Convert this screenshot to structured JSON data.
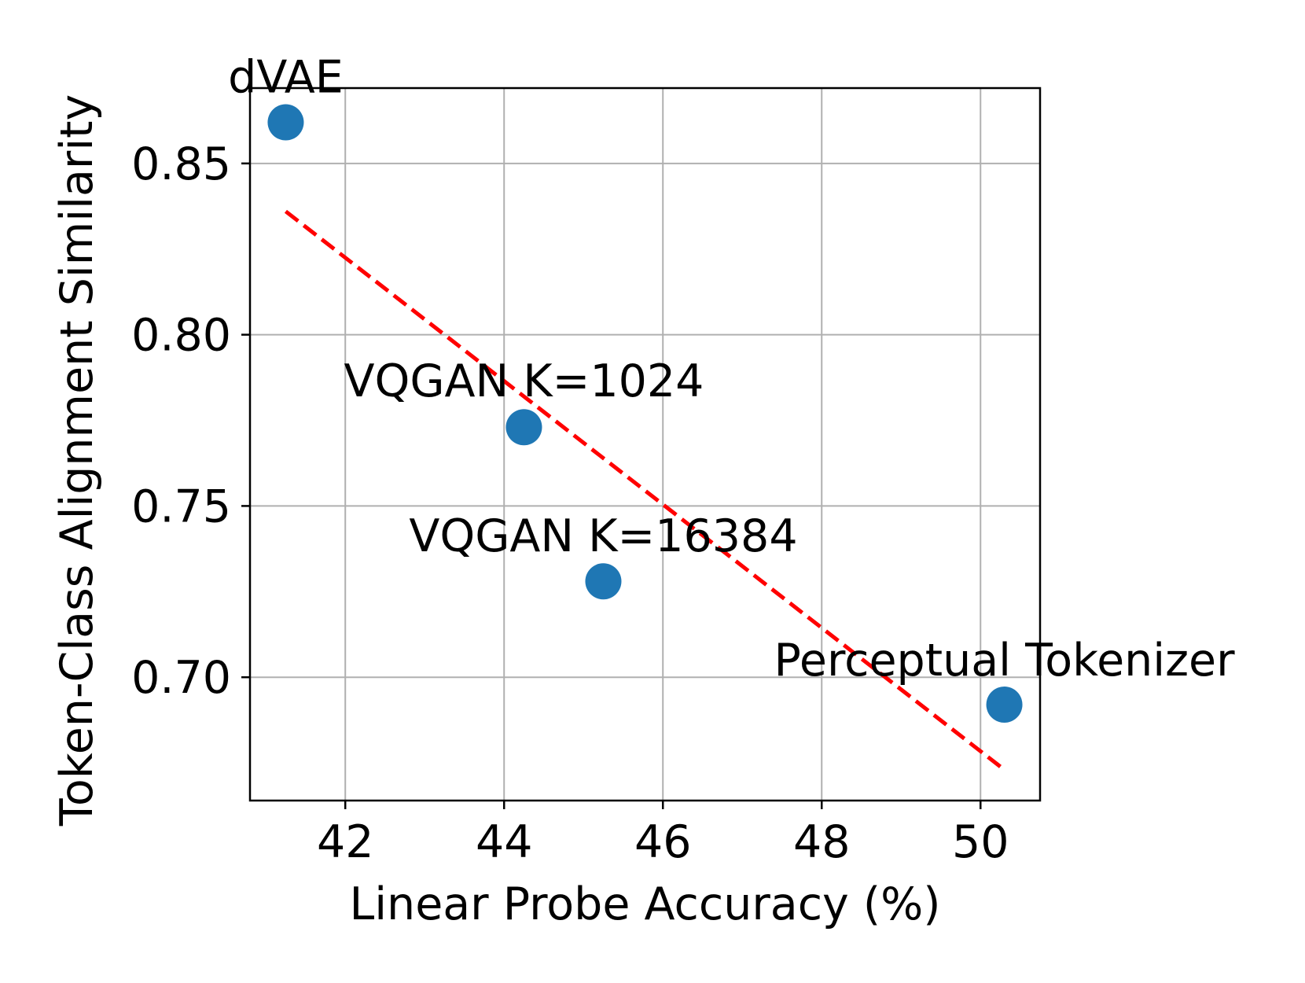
{
  "chart_data": {
    "type": "scatter",
    "title": "",
    "xlabel": "Linear Probe Accuracy (%)",
    "ylabel": "Token-Class Alignment Similarity",
    "xlim": [
      40.8,
      50.75
    ],
    "ylim": [
      0.664,
      0.872
    ],
    "xticks": [
      42,
      44,
      46,
      48,
      50
    ],
    "xtick_labels": [
      "42",
      "44",
      "46",
      "48",
      "50"
    ],
    "yticks": [
      0.7,
      0.75,
      0.8,
      0.85
    ],
    "ytick_labels": [
      "0.70",
      "0.75",
      "0.80",
      "0.85"
    ],
    "grid": true,
    "legend": "none",
    "points": [
      {
        "label": "dVAE",
        "x": 41.25,
        "y": 0.862
      },
      {
        "label": "VQGAN K=1024",
        "x": 44.25,
        "y": 0.773
      },
      {
        "label": "VQGAN K=16384",
        "x": 45.25,
        "y": 0.728
      },
      {
        "label": "Perceptual Tokenizer",
        "x": 50.3,
        "y": 0.692
      }
    ],
    "trendline": {
      "style": "dashed",
      "color": "#ff0000",
      "x": [
        41.25,
        50.3
      ],
      "y": [
        0.836,
        0.673
      ]
    },
    "point_color": "#1f77b4",
    "grid_color": "#b0b0b0"
  }
}
